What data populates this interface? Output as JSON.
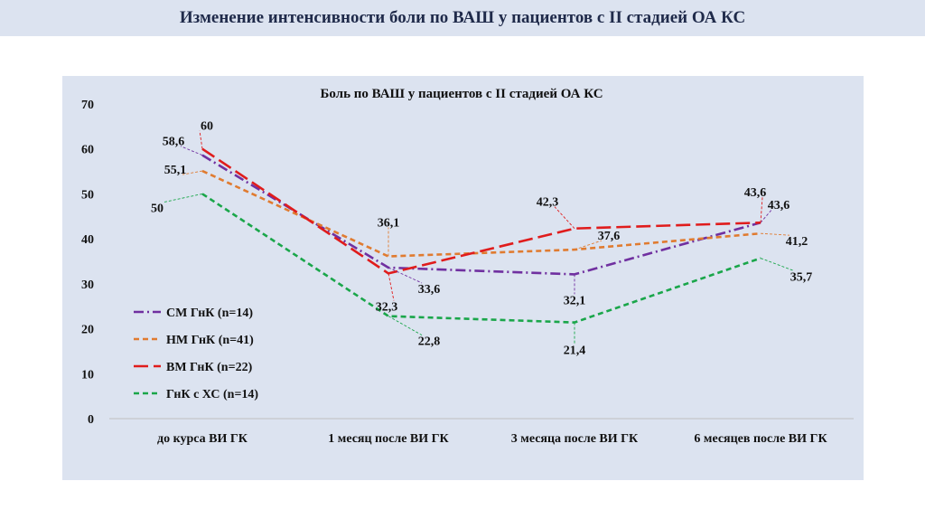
{
  "page": {
    "title": "Изменение интенсивности боли по ВАШ у пациентов с II стадией ОА КС"
  },
  "chart_data": {
    "type": "line",
    "title": "Боль по ВАШ у пациентов с II стадией ОА КС",
    "categories": [
      "до курса ВИ ГК",
      "1 месяц после ВИ ГК",
      "3 месяца после ВИ ГК",
      "6 месяцев после ВИ ГК"
    ],
    "ylim": [
      0,
      70
    ],
    "yticks": [
      0,
      10,
      20,
      30,
      40,
      50,
      60,
      70
    ],
    "grid": false,
    "legend": "left",
    "series": [
      {
        "name": "СМ ГнК (n=14)",
        "values": [
          58.6,
          33.6,
          32.1,
          43.6
        ],
        "labels": [
          "58,6",
          "33,6",
          "32,1",
          "43,6"
        ],
        "color": "#7030a0",
        "dash": "dashdot"
      },
      {
        "name": "НМ ГнК (n=41)",
        "values": [
          55.1,
          36.1,
          37.6,
          41.2
        ],
        "labels": [
          "55,1",
          "36,1",
          "37,6",
          "41,2"
        ],
        "color": "#e07b30",
        "dash": "dash"
      },
      {
        "name": "ВМ ГнК (n=22)",
        "values": [
          60,
          32.3,
          42.3,
          43.6
        ],
        "labels": [
          "60",
          "32,3",
          "42,3",
          "43,6"
        ],
        "color": "#e01c1c",
        "dash": "longdash"
      },
      {
        "name": "ГнК с ХС (n=14)",
        "values": [
          50,
          22.8,
          21.4,
          35.7
        ],
        "labels": [
          "50",
          "22,8",
          "21,4",
          "35,7"
        ],
        "color": "#1aa64a",
        "dash": "dash"
      }
    ]
  }
}
